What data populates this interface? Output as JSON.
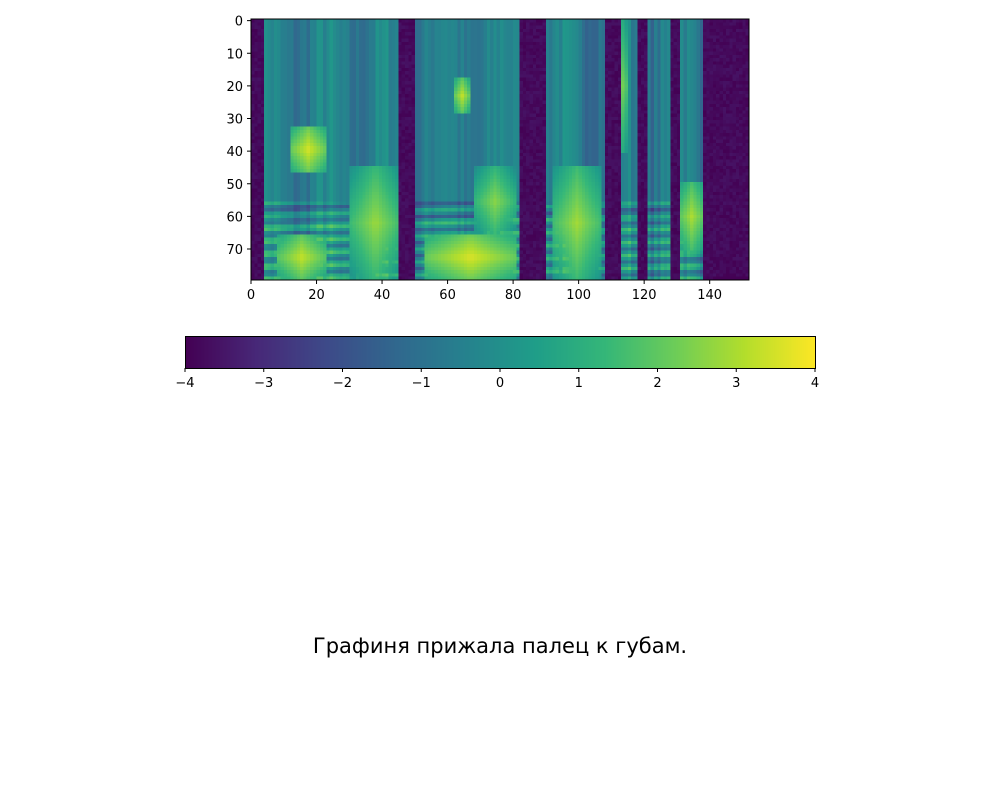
{
  "chart_data": [
    {
      "type": "heatmap",
      "description_of_values": "log-mel spectrogram values, 80 mel bins (rows, 0 at top) x 152 frames (columns)",
      "n_rows": 80,
      "n_cols": 152,
      "colormap": "viridis",
      "value_range": [
        -4,
        4
      ],
      "xlim": [
        0,
        152
      ],
      "ylim": [
        79.5,
        -0.5
      ],
      "x_ticks": [
        0,
        20,
        40,
        60,
        80,
        100,
        120,
        140
      ],
      "x_tick_labels": [
        "0",
        "20",
        "40",
        "60",
        "80",
        "100",
        "120",
        "140"
      ],
      "y_ticks": [
        0,
        10,
        20,
        30,
        40,
        50,
        60,
        70
      ],
      "y_tick_labels": [
        "0",
        "10",
        "20",
        "30",
        "40",
        "50",
        "60",
        "70"
      ],
      "silence_columns": [
        [
          0,
          3
        ],
        [
          45,
          49
        ],
        [
          82,
          89
        ],
        [
          108,
          112
        ],
        [
          118,
          120
        ],
        [
          128,
          130
        ],
        [
          138,
          152
        ]
      ],
      "bright_regions": [
        {
          "cols": [
            12,
            22
          ],
          "rows": [
            33,
            46
          ],
          "level": 3.5
        },
        {
          "cols": [
            8,
            22
          ],
          "rows": [
            66,
            79
          ],
          "level": 3.3
        },
        {
          "cols": [
            30,
            45
          ],
          "rows": [
            45,
            79
          ],
          "level": 2.8
        },
        {
          "cols": [
            53,
            80
          ],
          "rows": [
            66,
            79
          ],
          "level": 3.6
        },
        {
          "cols": [
            62,
            66
          ],
          "rows": [
            18,
            28
          ],
          "level": 3.2
        },
        {
          "cols": [
            68,
            80
          ],
          "rows": [
            45,
            66
          ],
          "level": 2.6
        },
        {
          "cols": [
            92,
            106
          ],
          "rows": [
            45,
            79
          ],
          "level": 2.9
        },
        {
          "cols": [
            110,
            114
          ],
          "rows": [
            0,
            40
          ],
          "level": 2.8
        },
        {
          "cols": [
            130,
            138
          ],
          "rows": [
            50,
            70
          ],
          "level": 3.0
        }
      ],
      "title": "",
      "xlabel": "",
      "ylabel": ""
    },
    {
      "type": "colorbar",
      "orientation": "horizontal",
      "colormap": "viridis",
      "range": [
        -4,
        4
      ],
      "ticks": [
        -4,
        -3,
        -2,
        -1,
        0,
        1,
        2,
        3,
        4
      ],
      "tick_labels": [
        "−4",
        "−3",
        "−2",
        "−1",
        "0",
        "1",
        "2",
        "3",
        "4"
      ]
    }
  ],
  "caption": "Графиня прижала палец к губам."
}
